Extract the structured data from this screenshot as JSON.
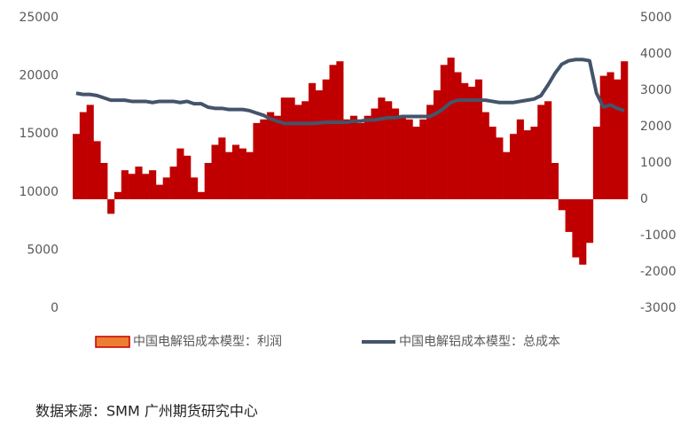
{
  "chart_data": {
    "type": "bar-line",
    "series": [
      {
        "name": "中国电解铝成本模型：利润",
        "color": "#c00000",
        "kind": "bar",
        "axis": "y2",
        "values": [
          1800,
          2400,
          2600,
          1600,
          1000,
          -400,
          200,
          800,
          700,
          900,
          700,
          800,
          400,
          600,
          900,
          1400,
          1200,
          600,
          200,
          1000,
          1500,
          1700,
          1300,
          1500,
          1400,
          1300,
          2100,
          2200,
          2400,
          2300,
          2800,
          2800,
          2600,
          2700,
          3200,
          3000,
          3300,
          3700,
          3800,
          2200,
          2300,
          2100,
          2300,
          2500,
          2800,
          2700,
          2500,
          2300,
          2200,
          2000,
          2200,
          2600,
          3000,
          3700,
          3900,
          3500,
          3200,
          3100,
          3300,
          2400,
          2000,
          1700,
          1300,
          1800,
          2200,
          1900,
          2000,
          2600,
          2700,
          1000,
          -300,
          -900,
          -1600,
          -1800,
          -1200,
          2000,
          3400,
          3500,
          3300,
          3800
        ]
      },
      {
        "name": "中国电解铝成本模型：总成本",
        "color": "#44546a",
        "kind": "line",
        "axis": "y",
        "values": [
          18500,
          18400,
          18400,
          18300,
          18100,
          17900,
          17900,
          17900,
          17800,
          17800,
          17800,
          17700,
          17800,
          17800,
          17800,
          17700,
          17800,
          17600,
          17600,
          17300,
          17200,
          17200,
          17100,
          17100,
          17100,
          17000,
          16800,
          16600,
          16300,
          16100,
          15900,
          15900,
          15900,
          15900,
          15900,
          15950,
          16000,
          16000,
          16000,
          16000,
          16100,
          16100,
          16200,
          16200,
          16300,
          16400,
          16400,
          16500,
          16500,
          16500,
          16500,
          16500,
          16800,
          17200,
          17700,
          17900,
          17900,
          17900,
          17900,
          17900,
          17800,
          17700,
          17700,
          17700,
          17800,
          17900,
          18000,
          18300,
          19200,
          20200,
          21000,
          21300,
          21400,
          21400,
          21300,
          18500,
          17300,
          17500,
          17200,
          17000
        ]
      }
    ],
    "ylim": [
      0,
      25000
    ],
    "yticks": [
      0,
      5000,
      10000,
      15000,
      20000,
      25000
    ],
    "y2lim": [
      -3000,
      5000
    ],
    "y2ticks": [
      -3000,
      -2000,
      -1000,
      0,
      1000,
      2000,
      3000,
      4000,
      5000
    ],
    "source": "数据来源：SMM  广州期货研究中心"
  }
}
